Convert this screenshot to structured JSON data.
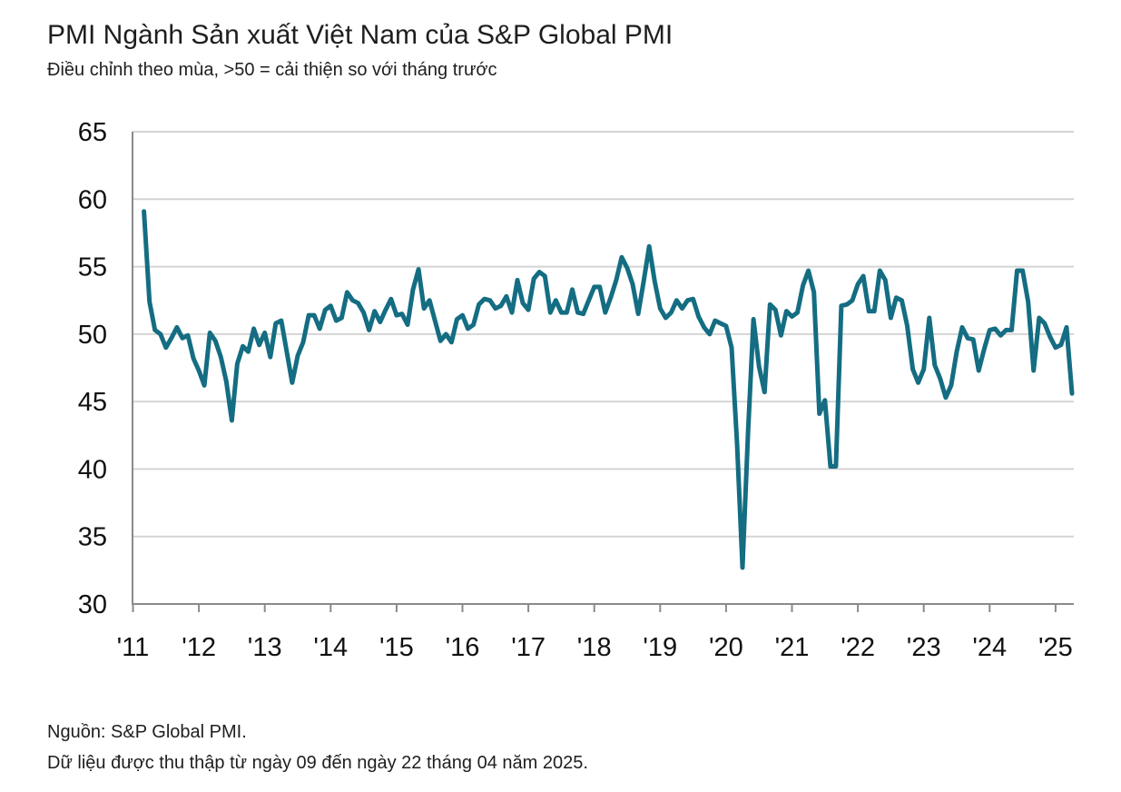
{
  "header": {
    "title": "PMI Ngành Sản xuất Việt Nam của S&P Global PMI",
    "subtitle": "Điều chỉnh theo mùa, >50 = cải thiện so với tháng trước"
  },
  "footer": {
    "source": "Nguồn: S&P Global PMI.",
    "note": "Dữ liệu được thu thập từ ngày 09 đến ngày 22 tháng 04 năm 2025."
  },
  "colors": {
    "line": "#146d82",
    "grid": "#d4d4d4",
    "axis": "#8a8a8a"
  },
  "chart_data": {
    "type": "line",
    "title": "PMI Ngành Sản xuất Việt Nam của S&P Global PMI",
    "subtitle": "Điều chỉnh theo mùa, >50 = cải thiện so với tháng trước",
    "xlabel": "",
    "ylabel": "",
    "ylim": [
      30,
      65
    ],
    "yticks": [
      30,
      35,
      40,
      45,
      50,
      55,
      60,
      65
    ],
    "xtick_labels": [
      "'11",
      "'12",
      "'13",
      "'14",
      "'15",
      "'16",
      "'17",
      "'18",
      "'19",
      "'20",
      "'21",
      "'22",
      "'23",
      "'24",
      "'25"
    ],
    "grid": true,
    "x_start": "2011-03",
    "x_end": "2025-04",
    "series": [
      {
        "values": [
          59.1,
          52.4,
          50.3,
          50.0,
          49.0,
          49.7,
          50.5,
          49.7,
          49.9,
          48.2,
          47.3,
          46.2,
          50.1,
          49.5,
          48.3,
          46.5,
          43.6,
          47.8,
          49.1,
          48.7,
          50.4,
          49.2,
          50.1,
          48.3,
          50.8,
          51.0,
          48.7,
          46.4,
          48.4,
          49.4,
          51.4,
          51.4,
          50.4,
          51.8,
          52.1,
          51.0,
          51.2,
          53.1,
          52.5,
          52.3,
          51.6,
          50.3,
          51.7,
          50.9,
          51.8,
          52.6,
          51.4,
          51.5,
          50.7,
          53.3,
          54.8,
          51.9,
          52.5,
          51.0,
          49.5,
          50.0,
          49.4,
          51.1,
          51.4,
          50.4,
          50.7,
          52.2,
          52.6,
          52.5,
          51.9,
          52.1,
          52.8,
          51.6,
          54.0,
          52.3,
          51.8,
          54.1,
          54.6,
          54.3,
          51.6,
          52.5,
          51.6,
          51.6,
          53.3,
          51.6,
          51.5,
          52.5,
          53.5,
          53.5,
          51.6,
          52.7,
          54.0,
          55.7,
          54.9,
          53.7,
          51.5,
          53.9,
          56.5,
          53.9,
          51.9,
          51.2,
          51.6,
          52.5,
          51.9,
          52.5,
          52.6,
          51.3,
          50.5,
          50.0,
          51.0,
          50.8,
          50.6,
          49.0,
          41.9,
          32.7,
          42.7,
          51.1,
          47.6,
          45.7,
          52.2,
          51.8,
          49.9,
          51.7,
          51.3,
          51.6,
          53.6,
          54.7,
          53.1,
          44.1,
          45.1,
          40.2,
          40.2,
          52.1,
          52.2,
          52.5,
          53.7,
          54.3,
          51.7,
          51.7,
          54.7,
          54.0,
          51.2,
          52.7,
          52.5,
          50.6,
          47.4,
          46.4,
          47.4,
          51.2,
          47.7,
          46.7,
          45.3,
          46.2,
          48.7,
          50.5,
          49.7,
          49.6,
          47.3,
          48.9,
          50.3,
          50.4,
          49.9,
          50.3,
          50.3,
          54.7,
          54.7,
          52.4,
          47.3,
          51.2,
          50.8,
          49.8,
          49.0,
          49.2,
          50.5,
          45.6
        ]
      }
    ]
  }
}
